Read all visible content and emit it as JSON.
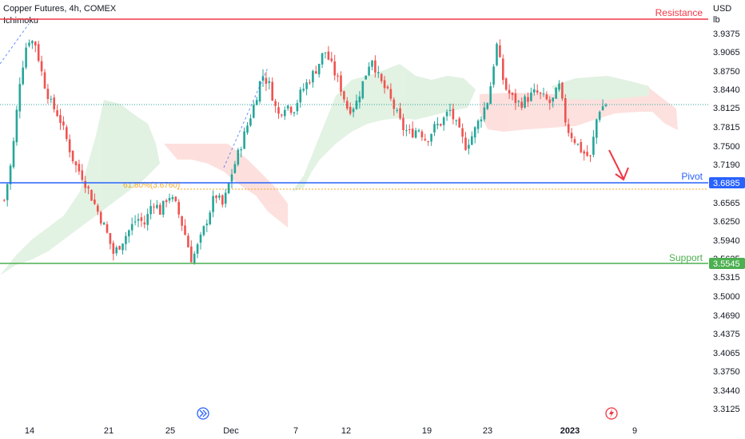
{
  "header": {
    "title": "Copper Futures, 4h, COMEX",
    "indicator": "Ichimoku"
  },
  "price_axis": {
    "currency": "USD",
    "unit": "lb",
    "ticks": [
      "3.9375",
      "3.9065",
      "3.8750",
      "3.8440",
      "3.8125",
      "3.7815",
      "3.7500",
      "3.7190",
      "3.6565",
      "3.6250",
      "3.5940",
      "3.5625",
      "3.5315",
      "3.5000",
      "3.4690",
      "3.4375",
      "3.4065",
      "3.3750",
      "3.3440",
      "3.3125"
    ],
    "badges": [
      {
        "value": "3.6885",
        "color": "#2962ff"
      },
      {
        "value": "3.5545",
        "color": "#4caf50"
      }
    ]
  },
  "time_axis": {
    "labels": [
      "14",
      "21",
      "25",
      "Dec",
      "7",
      "12",
      "19",
      "23",
      "2023",
      "9"
    ]
  },
  "levels": {
    "resistance": {
      "label": "Resistance",
      "color": "#f23645"
    },
    "pivot": {
      "label": "Pivot",
      "value": 3.6885,
      "color": "#2962ff"
    },
    "support": {
      "label": "Support",
      "value": 3.5545,
      "color": "#4caf50"
    },
    "fib": {
      "label": "61.80%(3.6760)",
      "value": 3.676,
      "color": "#f5a623"
    }
  },
  "icons": [
    "fast-forward-icon",
    "lightning-icon",
    "arrow-down-right-icon"
  ],
  "chart_data": {
    "type": "candlestick",
    "title": "Copper Futures, 4h, COMEX",
    "ylabel": "USD lb",
    "ylim": [
      3.295,
      3.985
    ],
    "grid": false,
    "colors": {
      "up": "#26a69a",
      "down": "#ef5350",
      "cloud_bull": "#4caf50",
      "cloud_bear": "#f44336"
    },
    "close_path": [
      3.66,
      3.73,
      3.86,
      3.93,
      3.92,
      3.86,
      3.82,
      3.8,
      3.76,
      3.72,
      3.7,
      3.67,
      3.64,
      3.61,
      3.57,
      3.59,
      3.61,
      3.63,
      3.62,
      3.66,
      3.64,
      3.67,
      3.65,
      3.61,
      3.56,
      3.59,
      3.63,
      3.67,
      3.65,
      3.7,
      3.74,
      3.78,
      3.82,
      3.87,
      3.85,
      3.8,
      3.82,
      3.81,
      3.84,
      3.86,
      3.88,
      3.91,
      3.88,
      3.85,
      3.81,
      3.82,
      3.86,
      3.9,
      3.86,
      3.84,
      3.81,
      3.78,
      3.77,
      3.78,
      3.76,
      3.78,
      3.79,
      3.81,
      3.78,
      3.75,
      3.77,
      3.8,
      3.83,
      3.92,
      3.85,
      3.83,
      3.82,
      3.83,
      3.84,
      3.83,
      3.82,
      3.85,
      3.78,
      3.76,
      3.74,
      3.73,
      3.81,
      3.82
    ]
  }
}
